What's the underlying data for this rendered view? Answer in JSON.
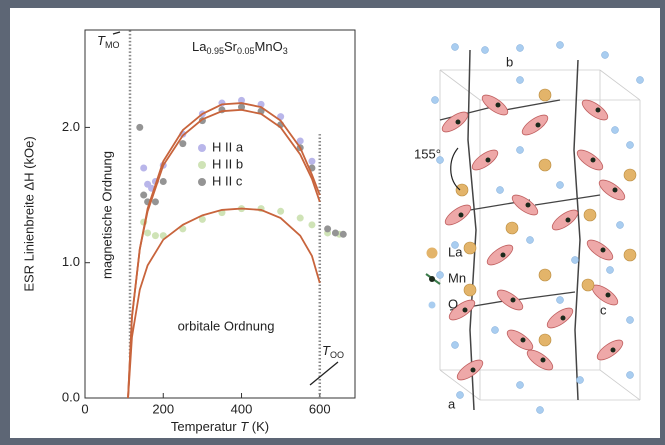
{
  "chart_data": {
    "type": "scatter",
    "title_parts": [
      "La",
      "0.95",
      "Sr",
      "0.05",
      "MnO",
      "3"
    ],
    "x_label_parts": [
      "Temperatur ",
      "T",
      " (K)"
    ],
    "y_label": "ESR Linienbreite ΔH (kOe)",
    "xlim": [
      0,
      690
    ],
    "xticks": [
      0,
      200,
      400,
      600
    ],
    "ylim": [
      0,
      2.72
    ],
    "yticks": [
      {
        "value": 0,
        "label": "0.0"
      },
      {
        "value": 1,
        "label": "1.0"
      },
      {
        "value": 2,
        "label": "2.0"
      }
    ],
    "annotations": [
      "magnetische Ordnung",
      "orbitale Ordnung"
    ],
    "transitions": [
      {
        "symbol": "T",
        "sub": "MO",
        "x": 115
      },
      {
        "symbol": "T",
        "sub": "OO",
        "x": 600
      }
    ],
    "series": [
      {
        "name": "H II a",
        "color": "#b9b6ea",
        "x": [
          150,
          160,
          170,
          180,
          200,
          250,
          300,
          350,
          400,
          450,
          500,
          550,
          580
        ],
        "values": [
          1.7,
          1.58,
          1.55,
          1.6,
          1.72,
          1.95,
          2.1,
          2.18,
          2.2,
          2.17,
          2.08,
          1.9,
          1.75
        ]
      },
      {
        "name": "H II b",
        "color": "#cfe3b6",
        "x": [
          150,
          160,
          180,
          200,
          250,
          300,
          350,
          400,
          450,
          500,
          550,
          580,
          620,
          650
        ],
        "values": [
          1.3,
          1.22,
          1.2,
          1.2,
          1.25,
          1.32,
          1.37,
          1.4,
          1.4,
          1.38,
          1.33,
          1.28,
          1.22,
          1.21
        ]
      },
      {
        "name": "H II c",
        "color": "#949494",
        "x": [
          140,
          150,
          160,
          180,
          200,
          250,
          300,
          350,
          400,
          450,
          500,
          550,
          580,
          620,
          640,
          660
        ],
        "values": [
          2.0,
          1.5,
          1.45,
          1.45,
          1.6,
          1.88,
          2.05,
          2.13,
          2.15,
          2.12,
          2.02,
          1.85,
          1.7,
          1.25,
          1.22,
          1.21
        ]
      },
      {
        "color": "#c8643c",
        "x": [
          110,
          120,
          140,
          160,
          200,
          250,
          300,
          350,
          400,
          450,
          500,
          550,
          580,
          600
        ],
        "values": [
          0,
          0.6,
          1.1,
          1.4,
          1.75,
          1.98,
          2.1,
          2.17,
          2.18,
          2.15,
          2.05,
          1.85,
          1.65,
          1.5
        ]
      },
      {
        "color": "#c8643c",
        "x": [
          110,
          120,
          140,
          160,
          200,
          250,
          300,
          350,
          400,
          450,
          500,
          550,
          580,
          600
        ],
        "values": [
          0,
          0.6,
          1.1,
          1.38,
          1.72,
          1.94,
          2.06,
          2.12,
          2.13,
          2.1,
          2.0,
          1.8,
          1.62,
          1.45
        ]
      },
      {
        "color": "#c8643c",
        "x": [
          110,
          120,
          140,
          160,
          200,
          250,
          300,
          350,
          400,
          450,
          500,
          550,
          580,
          600
        ],
        "values": [
          0,
          0.45,
          0.8,
          0.98,
          1.17,
          1.28,
          1.35,
          1.39,
          1.4,
          1.39,
          1.33,
          1.2,
          1.05,
          0.85
        ]
      }
    ]
  },
  "diagram": {
    "legend": [
      "La",
      "Mn",
      "O"
    ],
    "axes": [
      "a",
      "b",
      "c"
    ],
    "angle_label": "155°"
  }
}
